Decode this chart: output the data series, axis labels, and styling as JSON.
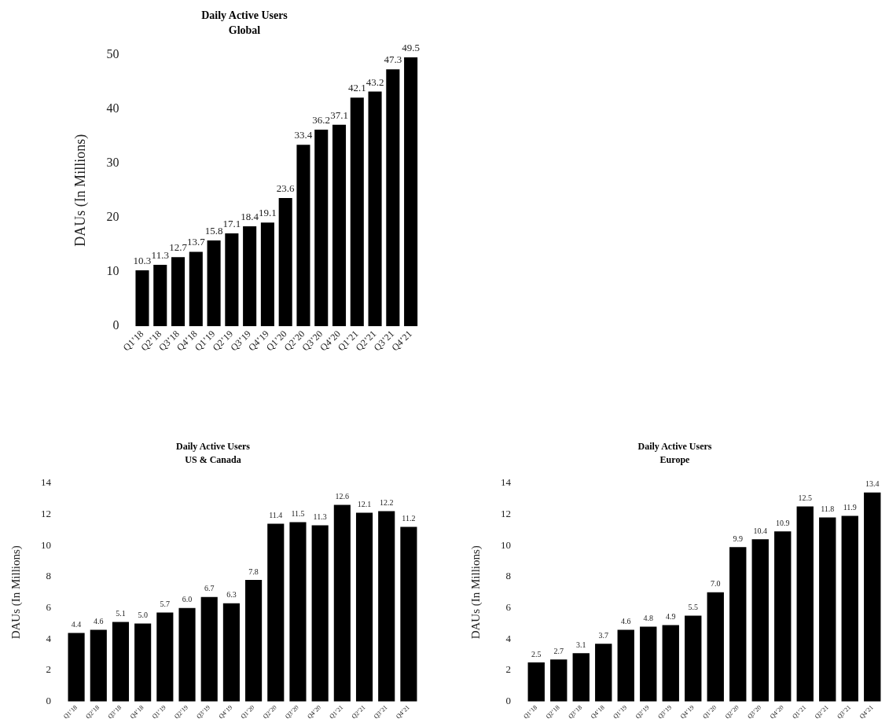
{
  "chart_data": [
    {
      "type": "bar",
      "title": "Daily Active Users",
      "subtitle": "Global",
      "ylabel": "DAUs (In Millions)",
      "categories": [
        "Q1’18",
        "Q2’18",
        "Q3’18",
        "Q4’18",
        "Q1’19",
        "Q2’19",
        "Q3’19",
        "Q4’19",
        "Q1’20",
        "Q2’20",
        "Q3’20",
        "Q4’20",
        "Q1’21",
        "Q2’21",
        "Q3’21",
        "Q4’21"
      ],
      "values": [
        10.3,
        11.3,
        12.7,
        13.7,
        15.8,
        17.1,
        18.4,
        19.1,
        23.6,
        33.4,
        36.2,
        37.1,
        42.1,
        43.2,
        47.3,
        49.5
      ],
      "color": "#000000",
      "ylim": [
        0,
        50
      ],
      "yticks": [
        0,
        10,
        20,
        30,
        40,
        50
      ],
      "grid": false,
      "legend": false,
      "data_labels": true
    },
    {
      "type": "bar",
      "title": "Daily Active Users",
      "subtitle": "US & Canada",
      "ylabel": "DAUs (In Millions)",
      "categories": [
        "Q1’18",
        "Q2’18",
        "Q3’18",
        "Q4’18",
        "Q1’19",
        "Q2’19",
        "Q3’19",
        "Q4’19",
        "Q1’20",
        "Q2’20",
        "Q3’20",
        "Q4’20",
        "Q1’21",
        "Q2’21",
        "Q3’21",
        "Q4’21"
      ],
      "values": [
        4.4,
        4.6,
        5.1,
        5.0,
        5.7,
        6.0,
        6.7,
        6.3,
        7.8,
        11.4,
        11.5,
        11.3,
        12.6,
        12.1,
        12.2,
        11.2
      ],
      "value_labels": [
        "4.4",
        "4.6",
        "5.1",
        "5.0",
        "5.7",
        "6.0",
        "6.7",
        "6.3",
        "7.8",
        "11.4",
        "11.5",
        "11.3",
        "12.6",
        "12.1",
        "12.2",
        "11.2"
      ],
      "color": "#000000",
      "ylim": [
        0,
        14
      ],
      "yticks": [
        0,
        2,
        4,
        6,
        8,
        10,
        12,
        14
      ],
      "grid": false,
      "legend": false
    },
    {
      "type": "bar",
      "title": "Daily Active Users",
      "subtitle": "Europe",
      "ylabel": "DAUs (In Millions)",
      "categories": [
        "Q1’18",
        "Q2’18",
        "Q3’18",
        "Q4’18",
        "Q1’19",
        "Q2’19",
        "Q3’19",
        "Q4’19",
        "Q1’20",
        "Q2’20",
        "Q3’20",
        "Q4’20",
        "Q1’21",
        "Q2’21",
        "Q3’21",
        "Q4’21"
      ],
      "values": [
        2.5,
        2.7,
        3.1,
        3.7,
        4.6,
        4.8,
        4.9,
        5.5,
        7.0,
        9.9,
        10.4,
        10.9,
        12.5,
        11.8,
        11.9,
        13.4
      ],
      "value_labels": [
        "2.5",
        "2.7",
        "3.1",
        "3.7",
        "4.6",
        "4.8",
        "4.9",
        "5.5",
        "7.0",
        "9.9",
        "10.4",
        "10.9",
        "12.5",
        "11.8",
        "11.9",
        "13.4"
      ],
      "color": "#000000",
      "ylim": [
        0,
        14
      ],
      "yticks": [
        0,
        2,
        4,
        6,
        8,
        10,
        12,
        14
      ],
      "grid": false,
      "legend": false
    }
  ]
}
